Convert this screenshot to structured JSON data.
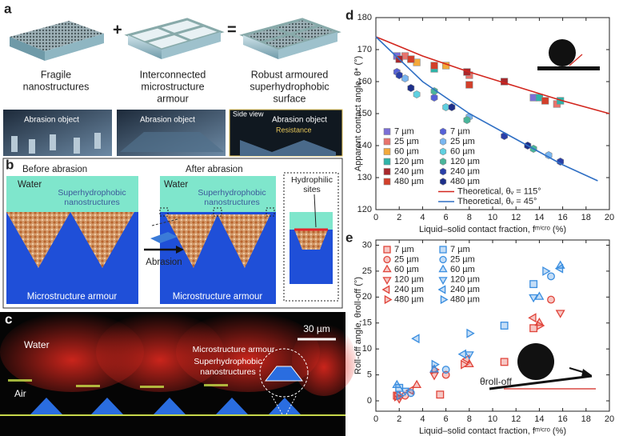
{
  "panel_a": {
    "label": "a",
    "captions": [
      [
        "Fragile",
        "nanostructures"
      ],
      [
        "Interconnected",
        "microstructure",
        "armour"
      ],
      [
        "Robust armoured",
        "superhydrophobic",
        "surface"
      ]
    ],
    "plus": "+",
    "equals": "=",
    "abrasion_object": [
      "Abrasion object",
      "Abrasion object",
      "Abrasion object"
    ],
    "side_view": "Side view",
    "resistance": "Resistance"
  },
  "panel_b": {
    "label": "b",
    "before": "Before abrasion",
    "after": "After abrasion",
    "water": [
      "Water",
      "Water"
    ],
    "nano": [
      [
        "Superhydrophobic",
        "nanostructures"
      ],
      [
        "Superhydrophobic",
        "nanostructures"
      ]
    ],
    "armour": [
      "Microstructure armour",
      "Microstructure armour"
    ],
    "abrasion": "Abrasion",
    "hydrophilic": [
      "Hydrophilic",
      "sites"
    ]
  },
  "panel_c": {
    "label": "c",
    "water": "Water",
    "air": "Air",
    "scale": "30 µm",
    "armour": "Microstructure armour",
    "nano": [
      "Superhydrophobic",
      "nanostructures"
    ]
  },
  "chart_data": [
    {
      "type": "scatter",
      "label": "d",
      "ylabel": "Apparent contact angle, θ* (°)",
      "xlabel": "Liquid–solid contact fraction, fᵐⁱᶜʳᵒ (%)",
      "xlim": [
        0,
        20
      ],
      "ylim": [
        120,
        180
      ],
      "xticks": [
        0,
        2,
        4,
        6,
        8,
        10,
        12,
        14,
        16,
        18,
        20
      ],
      "yticks": [
        120,
        130,
        140,
        150,
        160,
        170,
        180
      ],
      "legend": "lower left",
      "hollow": false,
      "series": [
        {
          "name": "7 µm",
          "color": "#7b6fd6",
          "marker": "square",
          "x": [
            1.8,
            13.5
          ],
          "values": [
            168,
            155
          ]
        },
        {
          "name": "25 µm",
          "color": "#e8736b",
          "marker": "square",
          "x": [
            2.5,
            8,
            15.5
          ],
          "values": [
            168,
            162,
            153
          ]
        },
        {
          "name": "60 µm",
          "color": "#f3a93a",
          "marker": "square",
          "x": [
            3.5,
            6
          ],
          "values": [
            166,
            165
          ]
        },
        {
          "name": "120 µm",
          "color": "#2fb3a8",
          "marker": "square",
          "x": [
            5,
            14,
            15.8
          ],
          "values": [
            164,
            155,
            154
          ]
        },
        {
          "name": "240 µm",
          "color": "#a8282c",
          "marker": "square",
          "x": [
            2,
            7.8,
            11
          ],
          "values": [
            167,
            163,
            160
          ]
        },
        {
          "name": "480 µm",
          "color": "#d23f2a",
          "marker": "square",
          "x": [
            3,
            5,
            8,
            14.5
          ],
          "values": [
            167,
            165,
            159,
            154
          ]
        },
        {
          "name": "7 µm",
          "color": "#5560d8",
          "marker": "hexagon",
          "x": [
            1.8,
            5
          ],
          "values": [
            163,
            155
          ]
        },
        {
          "name": "25 µm",
          "color": "#79b6f0",
          "marker": "hexagon",
          "x": [
            2.5,
            8,
            14.8
          ],
          "values": [
            161,
            149,
            137
          ]
        },
        {
          "name": "60 µm",
          "color": "#5fd0e0",
          "marker": "hexagon",
          "x": [
            3.5,
            6
          ],
          "values": [
            156,
            152
          ]
        },
        {
          "name": "120 µm",
          "color": "#49b59a",
          "marker": "hexagon",
          "x": [
            5,
            7.8,
            13.5
          ],
          "values": [
            157,
            148,
            139
          ]
        },
        {
          "name": "240 µm",
          "color": "#2a3fa8",
          "marker": "hexagon",
          "x": [
            2,
            11,
            15.8
          ],
          "values": [
            162,
            143,
            135
          ]
        },
        {
          "name": "480 µm",
          "color": "#1d2f8a",
          "marker": "hexagon",
          "x": [
            3,
            6.5,
            13
          ],
          "values": [
            158,
            152,
            140
          ]
        },
        {
          "name": "Theoretical, θᵥ = 115°",
          "color": "#d2261e",
          "type": "line",
          "x": [
            0,
            4,
            8,
            12,
            16,
            20
          ],
          "values": [
            174,
            168,
            163,
            158.5,
            154,
            150
          ]
        },
        {
          "name": "Theoretical, θᵥ = 45°",
          "color": "#2f6fc4",
          "type": "line",
          "x": [
            0,
            4,
            8,
            12,
            16,
            19
          ],
          "values": [
            174,
            160,
            150,
            142,
            134,
            129
          ]
        }
      ]
    },
    {
      "type": "scatter",
      "label": "e",
      "ylabel": "Roll-off angle, θroll-off (°)",
      "xlabel": "Liquid–solid contact fraction, fᵐⁱᶜʳᵒ (%)",
      "annotation": "θroll-off",
      "xlim": [
        0,
        20
      ],
      "ylim": [
        -2,
        31
      ],
      "xticks": [
        0,
        2,
        4,
        6,
        8,
        10,
        12,
        14,
        16,
        18,
        20
      ],
      "yticks": [
        0,
        5,
        10,
        15,
        20,
        25,
        30
      ],
      "legend": "upper left",
      "hollow": true,
      "series": [
        {
          "name": "7 µm",
          "color": "#e0443a",
          "marker": "square",
          "x": [
            1.8,
            5.5,
            11,
            13.5
          ],
          "values": [
            1,
            1.2,
            7.5,
            14
          ]
        },
        {
          "name": "25 µm",
          "color": "#e0443a",
          "marker": "circle",
          "x": [
            2.5,
            6,
            15
          ],
          "values": [
            1,
            5,
            19.5
          ]
        },
        {
          "name": "60 µm",
          "color": "#e0443a",
          "marker": "triangle-up",
          "x": [
            3.5,
            8,
            14
          ],
          "values": [
            3,
            7,
            15
          ]
        },
        {
          "name": "120 µm",
          "color": "#e0443a",
          "marker": "triangle-down",
          "x": [
            2,
            5,
            15.8
          ],
          "values": [
            0.5,
            5,
            17
          ]
        },
        {
          "name": "240 µm",
          "color": "#e0443a",
          "marker": "triangle-left",
          "x": [
            3,
            7.8,
            13.5
          ],
          "values": [
            2,
            8,
            16
          ]
        },
        {
          "name": "480 µm",
          "color": "#e0443a",
          "marker": "triangle-right",
          "x": [
            1.8,
            5,
            7.5,
            14
          ],
          "values": [
            0.8,
            6,
            7,
            14.5
          ]
        },
        {
          "name": "7 µm",
          "color": "#3a8ee0",
          "marker": "square",
          "x": [
            2,
            11,
            13.5
          ],
          "values": [
            2.5,
            14.5,
            22.5
          ]
        },
        {
          "name": "25 µm",
          "color": "#3a8ee0",
          "marker": "circle",
          "x": [
            3,
            6,
            15
          ],
          "values": [
            1.5,
            6,
            24
          ]
        },
        {
          "name": "60 µm",
          "color": "#3a8ee0",
          "marker": "triangle-up",
          "x": [
            1.8,
            5,
            14,
            15.8
          ],
          "values": [
            3,
            6,
            20,
            26
          ]
        },
        {
          "name": "120 µm",
          "color": "#3a8ee0",
          "marker": "triangle-down",
          "x": [
            2.5,
            8,
            13.5
          ],
          "values": [
            2,
            9,
            20
          ]
        },
        {
          "name": "240 µm",
          "color": "#3a8ee0",
          "marker": "triangle-left",
          "x": [
            3.5,
            7.5,
            15.8
          ],
          "values": [
            12,
            9,
            25.5
          ]
        },
        {
          "name": "480 µm",
          "color": "#3a8ee0",
          "marker": "triangle-right",
          "x": [
            2,
            5,
            8,
            14.5
          ],
          "values": [
            1,
            7,
            13,
            25
          ]
        }
      ]
    }
  ]
}
